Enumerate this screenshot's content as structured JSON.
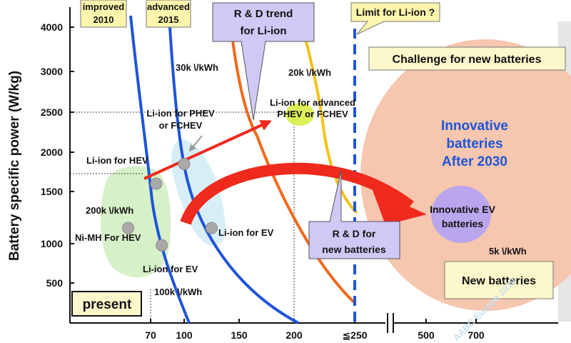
{
  "chart_data": {
    "type": "line",
    "ylabel": "Battery specific power (W/kg)",
    "y_ticks": [
      "4000",
      "3000",
      "2500",
      "2000",
      "1500",
      "1000",
      "500"
    ],
    "x_ticks": [
      "70",
      "100",
      "150",
      "200",
      "≦250",
      "500",
      "700"
    ],
    "x_axis_break": true,
    "cost_curves": [
      {
        "label": "200k \\/kWh",
        "color": "#1f55d8"
      },
      {
        "label": "100k \\/kWh",
        "color": "#1f55d8"
      },
      {
        "label": "30k \\/kWh",
        "color": "#f06a1c"
      },
      {
        "label": "20k \\/kWh",
        "color": "#f5c21a"
      },
      {
        "label": "5k \\/kWh",
        "color": "#f4b99c"
      }
    ],
    "points": [
      {
        "label": "Ni-MH For HEV",
        "x": 60,
        "y": 1150
      },
      {
        "label": "Li-ion for EV",
        "x": 80,
        "y": 980
      },
      {
        "label": "Li-ion for HEV",
        "x": 75,
        "y": 1600
      },
      {
        "label": "Li-ion for PHEV or FCHEV",
        "x": 100,
        "y": 1850
      },
      {
        "label": "Li-ion for EV",
        "x": 125,
        "y": 1150
      },
      {
        "label": "Li-ion for advanced PHEV or FCHEV",
        "x": 210,
        "y": 2480
      },
      {
        "label": "Innovative EV batteries",
        "x": 600,
        "y": 1200
      }
    ],
    "limit_x": 250,
    "guides": [
      {
        "y": 2500
      },
      {
        "y": 1700
      }
    ],
    "colors": {
      "blue": "#1f55d8",
      "orange": "#f06a1c",
      "yellow": "#f5c21a",
      "red": "#ee2a1d",
      "salmon": "#f4b99c",
      "lightgreen": "#d9f2cc",
      "lightblue": "#dff0f7",
      "purple": "#b9a6ec",
      "lime": "#d6ee3a",
      "callout": "#fdf5ad",
      "note": "#fdf8cc",
      "arrowbox": "#d0c9f6"
    }
  },
  "annotations": {
    "improved": "improved\n2010",
    "advanced": "advanced\n2015",
    "rd_trend": "R & D trend\nfor Li-ion",
    "limit": "Limit for Li-ion ?",
    "challenge": "Challenge for new batteries",
    "innovative": "Innovative\nbatteries\nAfter 2030",
    "rd_new": "R & D for\nnew batteries",
    "new_batteries": "New batteries",
    "present": "present",
    "watermark": "AABC Europe 2010",
    "innovative_ev": "Innovative EV\nbatteries"
  }
}
